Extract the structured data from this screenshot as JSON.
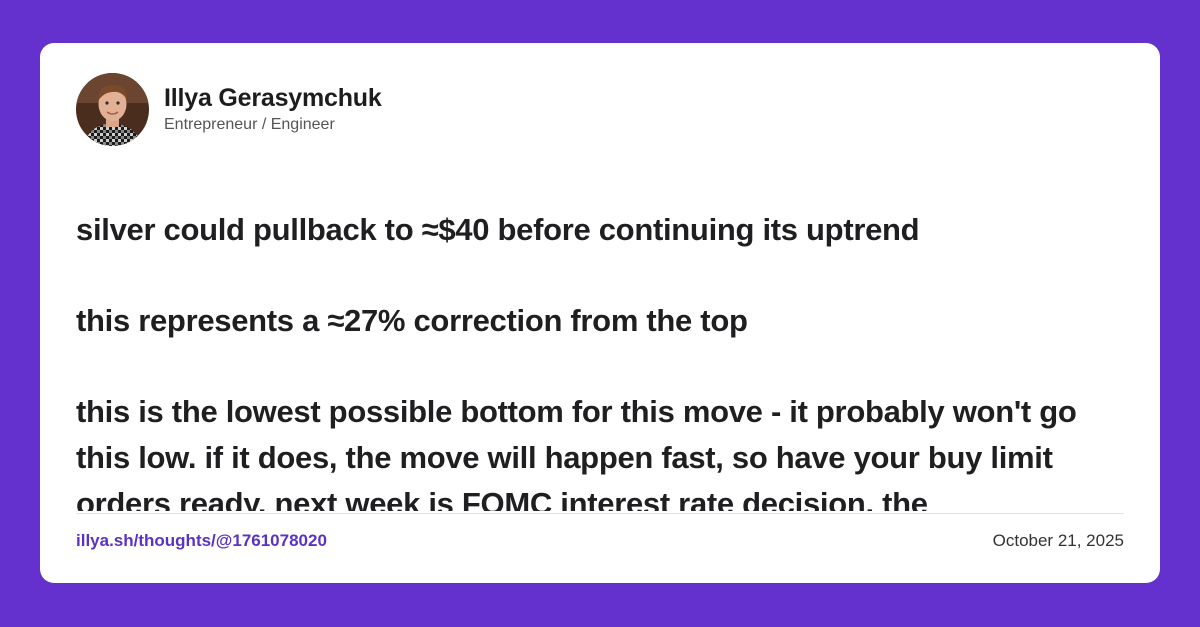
{
  "colors": {
    "background": "#6431cf",
    "card": "#ffffff",
    "link": "#5a33c4",
    "text": "#1f1f21"
  },
  "author": {
    "name": "Illya Gerasymchuk",
    "role": "Entrepreneur / Engineer",
    "avatar_icon": "avatar-photo"
  },
  "post": {
    "paragraphs": [
      "silver could pullback to ≈$40 before continuing its uptrend",
      "this represents a ≈27% correction from the top",
      "this is the lowest possible bottom for this move - it probably won't go this low. if it does, the move will happen fast, so have your buy limit orders ready. next week is FOMC interest rate decision, the"
    ]
  },
  "footer": {
    "link": "illya.sh/thoughts/@1761078020",
    "date": "October 21, 2025"
  }
}
